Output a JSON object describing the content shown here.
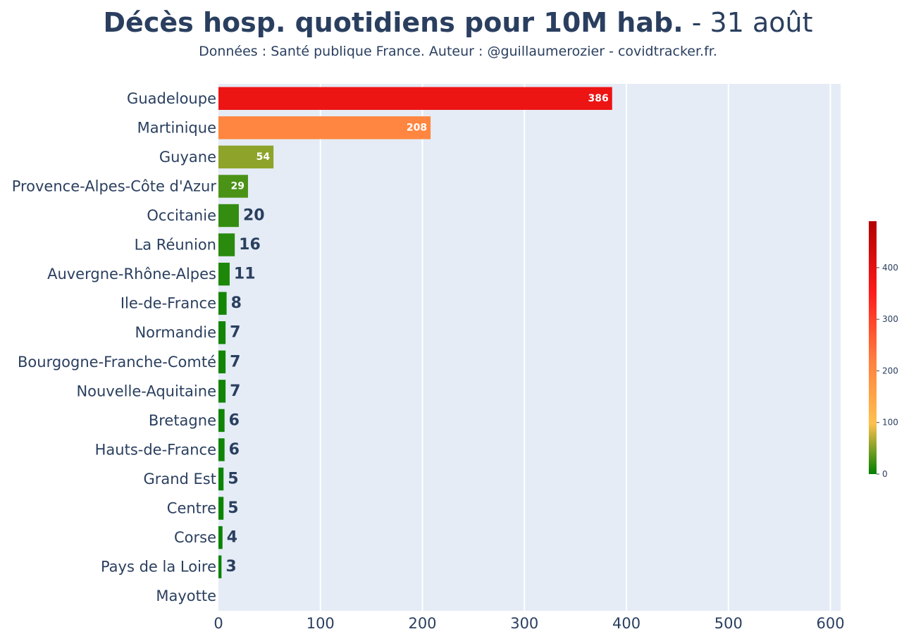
{
  "chart_data": {
    "type": "bar",
    "orientation": "horizontal",
    "title": "Décès hosp. quotidiens pour 10M hab.",
    "title_date": " - 31 août",
    "subtitle": "Données : Santé publique France. Auteur : @guillaumerozier - covidtracker.fr.",
    "categories": [
      "Guadeloupe",
      "Martinique",
      "Guyane",
      "Provence-Alpes-Côte d'Azur",
      "Occitanie",
      "La Réunion",
      "Auvergne-Rhône-Alpes",
      "Ile-de-France",
      "Normandie",
      "Bourgogne-Franche-Comté",
      "Nouvelle-Aquitaine",
      "Bretagne",
      "Hauts-de-France",
      "Grand Est",
      "Centre",
      "Corse",
      "Pays de la Loire",
      "Mayotte"
    ],
    "values": [
      386,
      208,
      54,
      29,
      20,
      16,
      11,
      8,
      7,
      7,
      7,
      6,
      6,
      5,
      5,
      4,
      3,
      0
    ],
    "value_labels": [
      "386",
      "208",
      "54",
      "29",
      "20",
      "16",
      "11",
      "8",
      "7",
      "7",
      "7",
      "6",
      "6",
      "5",
      "5",
      "4",
      "3",
      ""
    ],
    "xlim": [
      0,
      610
    ],
    "x_ticks": [
      0,
      100,
      200,
      300,
      400,
      500,
      600
    ],
    "grid": true,
    "colorscale": {
      "range": [
        0,
        490
      ],
      "ticks": [
        0,
        100,
        200,
        300,
        400
      ],
      "stops": [
        {
          "at": 0,
          "color": "#008000"
        },
        {
          "at": 0.2,
          "color": "#ffc04d"
        },
        {
          "at": 0.45,
          "color": "#ff7f3f"
        },
        {
          "at": 0.72,
          "color": "#ff1a1a"
        },
        {
          "at": 1,
          "color": "#b30000"
        }
      ]
    },
    "colors": {
      "plot_bg": "#e5ecf6",
      "grid": "#ffffff",
      "text": "#2a3f5f"
    }
  }
}
